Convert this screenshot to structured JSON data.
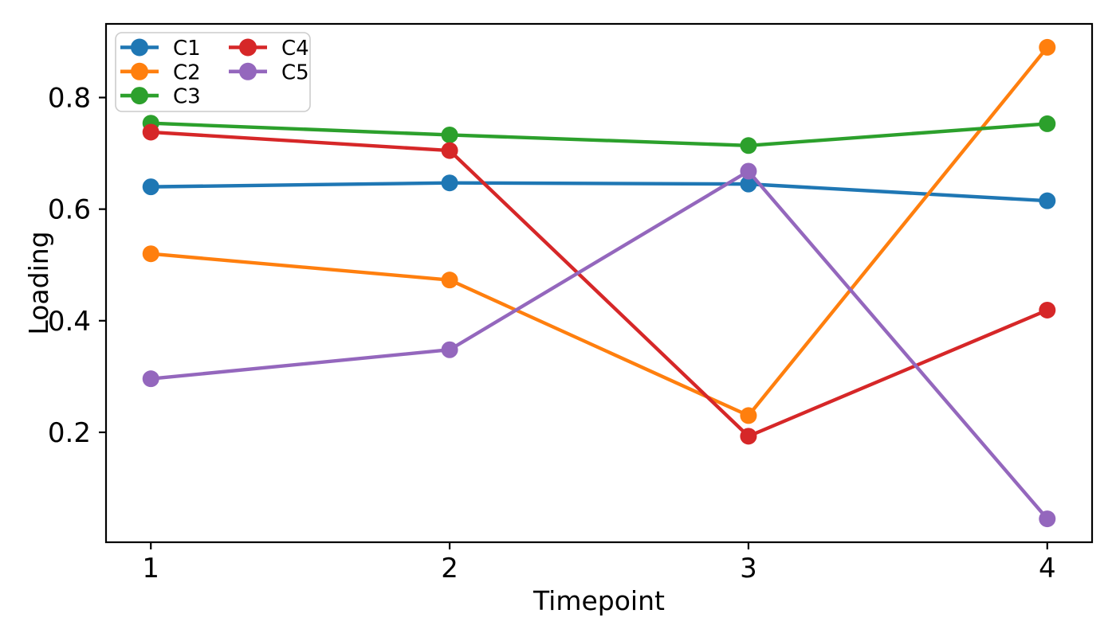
{
  "chart_data": {
    "type": "line",
    "title": "",
    "xlabel": "Timepoint",
    "ylabel": "Loading",
    "x": [
      1,
      2,
      3,
      4
    ],
    "xticks": [
      1,
      2,
      3,
      4
    ],
    "yticks": [
      0.2,
      0.4,
      0.6,
      0.8
    ],
    "xlim": [
      0.85,
      4.15
    ],
    "ylim": [
      0.003,
      0.932
    ],
    "grid": false,
    "legend": {
      "position": "upper left",
      "columns": 2,
      "column_order": [
        [
          "C1",
          "C2",
          "C3"
        ],
        [
          "C4",
          "C5"
        ]
      ]
    },
    "series": [
      {
        "name": "C1",
        "color": "#1f77b4",
        "values": [
          0.64,
          0.647,
          0.645,
          0.615
        ]
      },
      {
        "name": "C2",
        "color": "#ff7f0e",
        "values": [
          0.52,
          0.473,
          0.23,
          0.89
        ]
      },
      {
        "name": "C3",
        "color": "#2ca02c",
        "values": [
          0.754,
          0.733,
          0.714,
          0.753
        ]
      },
      {
        "name": "C4",
        "color": "#d62728",
        "values": [
          0.738,
          0.705,
          0.193,
          0.419
        ]
      },
      {
        "name": "C5",
        "color": "#9467bd",
        "values": [
          0.296,
          0.348,
          0.668,
          0.045
        ]
      }
    ]
  }
}
